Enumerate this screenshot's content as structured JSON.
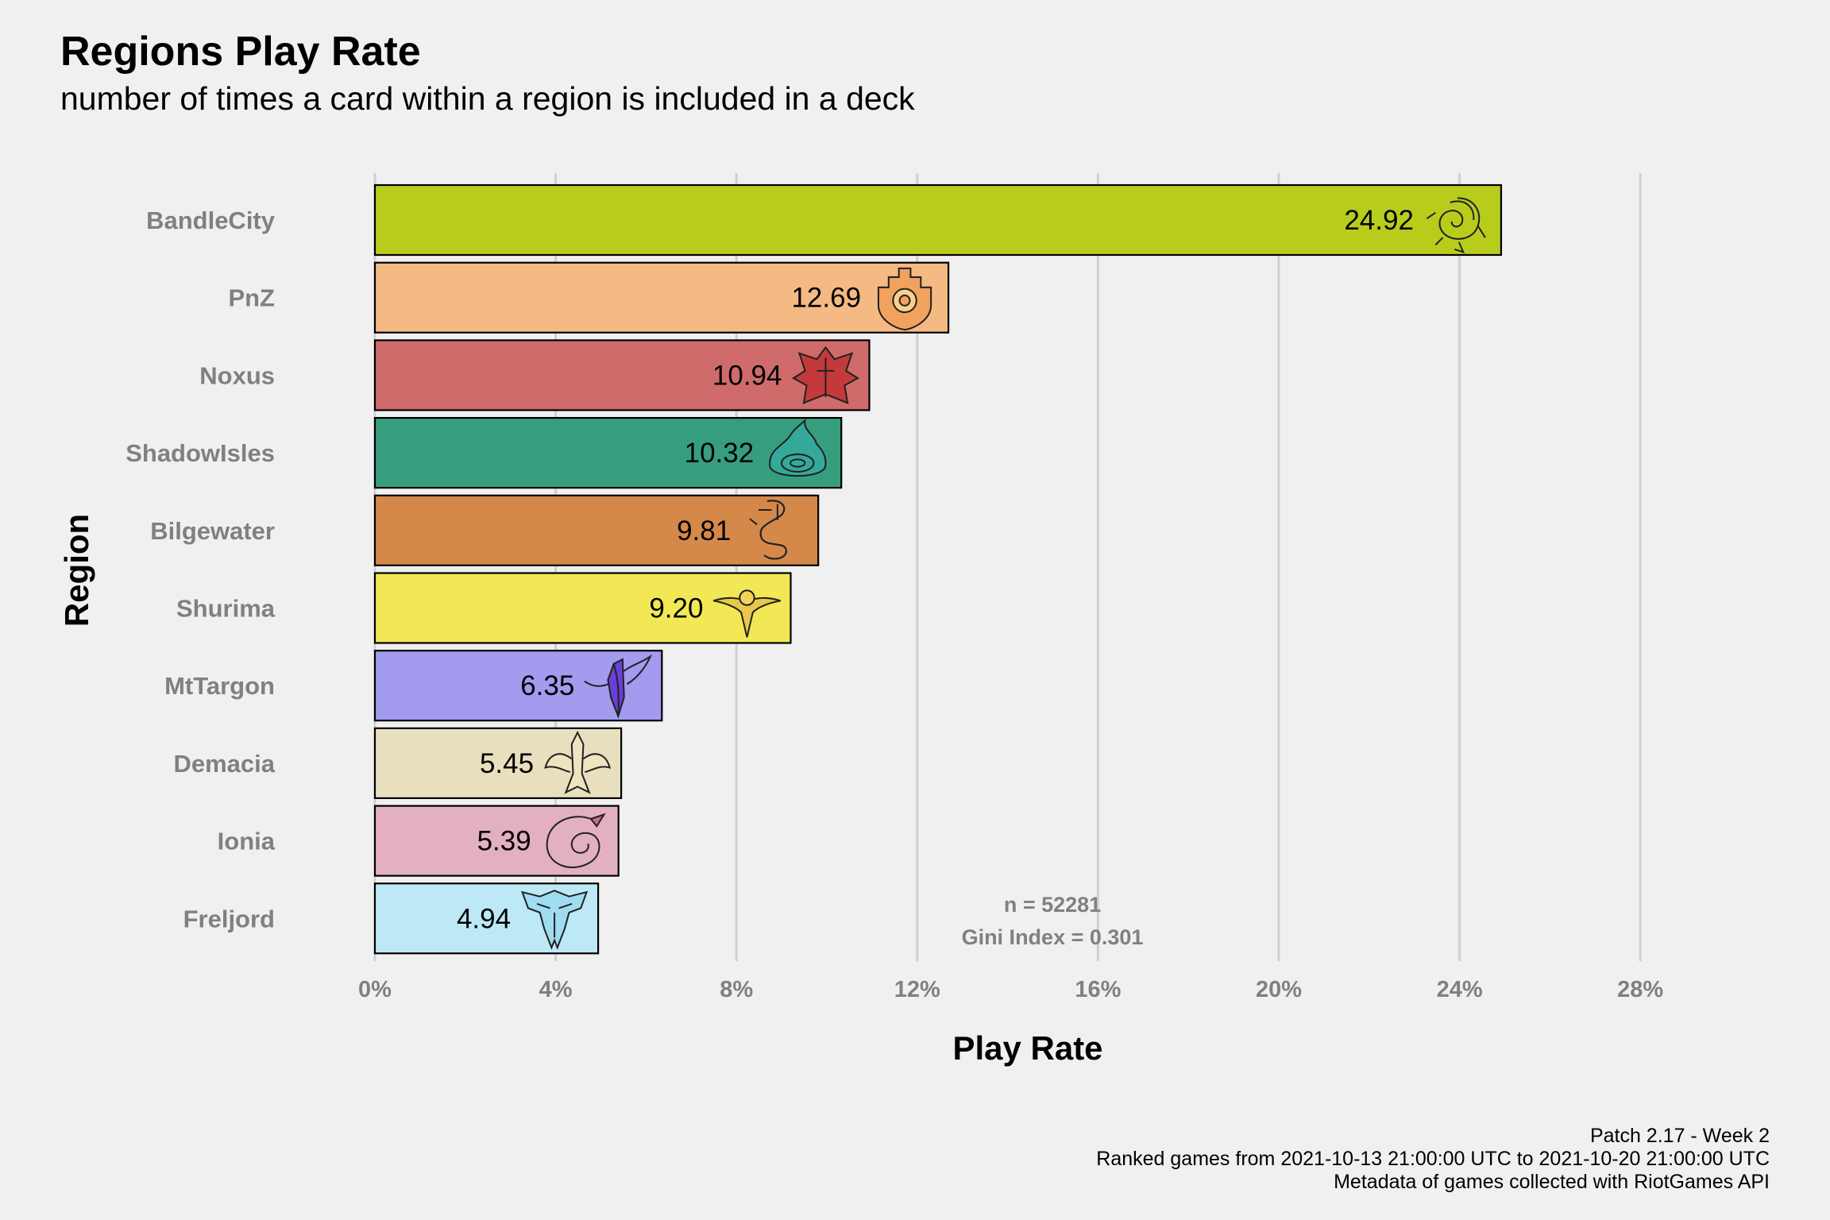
{
  "chart_data": {
    "type": "bar",
    "orientation": "horizontal",
    "title": "Regions Play Rate",
    "subtitle": "number of times a card within a region is included in a deck",
    "xlabel": "Play Rate",
    "ylabel": "Region",
    "xlim": [
      0,
      28
    ],
    "x_ticks": [
      0,
      4,
      8,
      12,
      16,
      20,
      24,
      28
    ],
    "x_tick_labels": [
      "0%",
      "4%",
      "8%",
      "12%",
      "16%",
      "20%",
      "24%",
      "28%"
    ],
    "grid": "vertical major gridlines",
    "legend": "none",
    "categories": [
      "BandleCity",
      "PnZ",
      "Noxus",
      "ShadowIsles",
      "Bilgewater",
      "Shurima",
      "MtTargon",
      "Demacia",
      "Ionia",
      "Freljord"
    ],
    "values": [
      24.92,
      12.69,
      10.94,
      10.32,
      9.81,
      9.2,
      6.35,
      5.45,
      5.39,
      4.94
    ],
    "value_labels": [
      "24.92",
      "12.69",
      "10.94",
      "10.32",
      "9.81",
      "9.20",
      "6.35",
      "5.45",
      "5.39",
      "4.94"
    ],
    "colors": [
      "#b8cc1c",
      "#f5b984",
      "#cf6b6b",
      "#369e7f",
      "#d4894b",
      "#f2e855",
      "#a29bee",
      "#e8dfbf",
      "#e2b0c2",
      "#bde9f6"
    ],
    "icons": [
      "bandlecity-icon",
      "pnz-icon",
      "noxus-icon",
      "shadowisles-icon",
      "bilgewater-icon",
      "shurima-icon",
      "mttargon-icon",
      "demacia-icon",
      "ionia-icon",
      "freljord-icon"
    ],
    "icon_colors": [
      "#b3c428",
      "#f2a15e",
      "#c43a3a",
      "#34a99a",
      "#b34a2e",
      "#e8c84a",
      "#6a3fd8",
      "#f0e4c0",
      "#d06a8c",
      "#9fdcf0"
    ],
    "annotations": [
      "n = 52281",
      "Gini Index = 0.301"
    ],
    "caption": [
      "Patch 2.17 - Week 2",
      "Ranked games from 2021-10-13 21:00:00 UTC to 2021-10-20 21:00:00 UTC",
      "Metadata of games collected with RiotGames API"
    ]
  }
}
